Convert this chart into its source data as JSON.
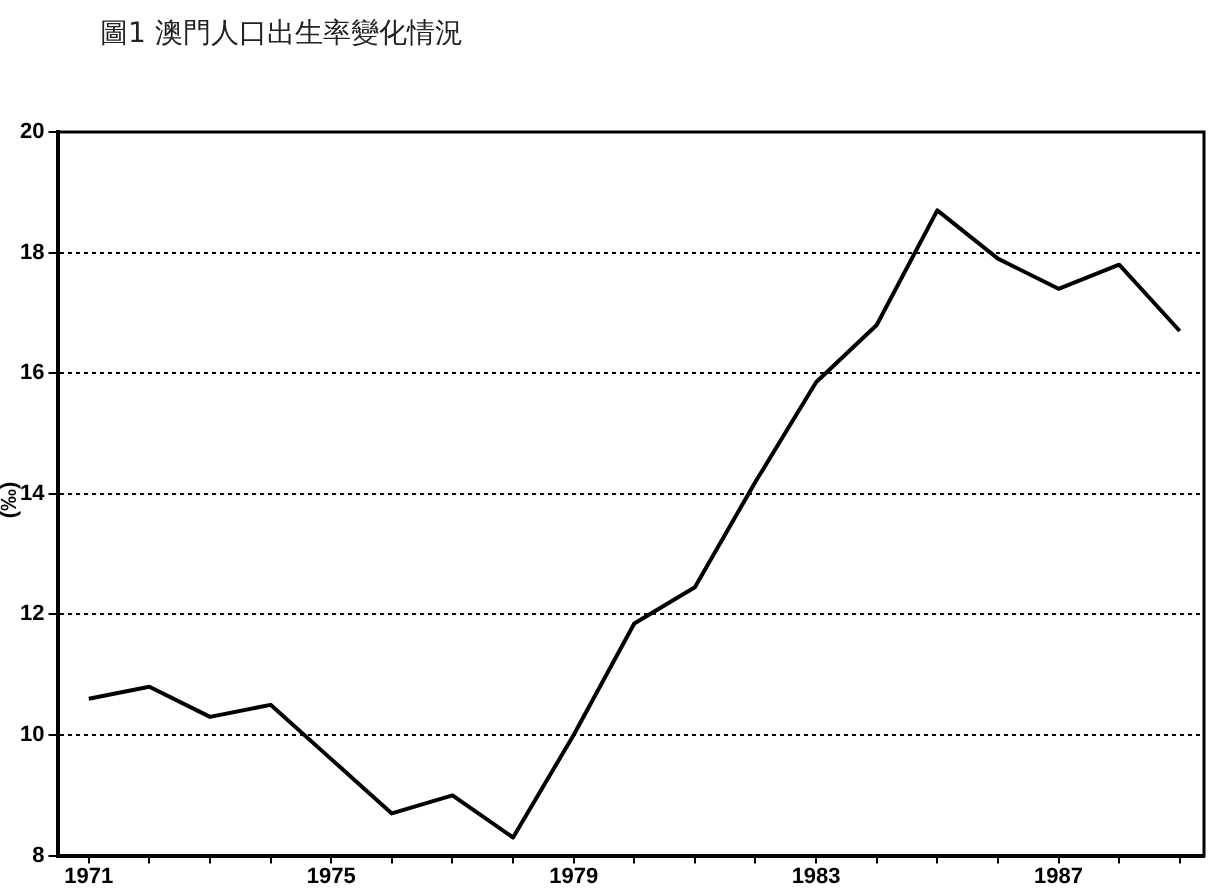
{
  "chart_data": {
    "type": "line",
    "title": "圖1 澳門人口出生率變化情況",
    "ylabel": "(‰)",
    "x": [
      1971,
      1972,
      1973,
      1974,
      1975,
      1976,
      1977,
      1978,
      1979,
      1980,
      1981,
      1982,
      1983,
      1984,
      1985,
      1986,
      1987,
      1988,
      1989
    ],
    "series": [
      {
        "color": "#000000",
        "values": [
          10.6,
          10.8,
          10.3,
          10.5,
          9.6,
          8.7,
          9.0,
          8.3,
          10.0,
          11.85,
          12.45,
          14.2,
          15.85,
          16.8,
          18.7,
          17.9,
          17.4,
          17.8,
          16.7
        ]
      }
    ],
    "xlim": [
      1970.5,
      1989.4
    ],
    "xticks": [
      1971,
      {
        "value": 1972,
        "label": null
      },
      {
        "value": 1973,
        "label": null
      },
      {
        "value": 1974,
        "label": null
      },
      1975,
      {
        "value": 1976,
        "label": null
      },
      {
        "value": 1977,
        "label": null
      },
      {
        "value": 1978,
        "label": null
      },
      1979,
      {
        "value": 1980,
        "label": null
      },
      {
        "value": 1981,
        "label": null
      },
      {
        "value": 1982,
        "label": null
      },
      1983,
      {
        "value": 1984,
        "label": null
      },
      {
        "value": 1985,
        "label": null
      },
      {
        "value": 1986,
        "label": null
      },
      1987,
      {
        "value": 1988,
        "label": null
      },
      {
        "value": 1989,
        "label": null
      }
    ],
    "ylim": [
      8,
      20
    ],
    "yticks": [
      8,
      10,
      12,
      14,
      16,
      18,
      20
    ],
    "grid": "y",
    "legend": false,
    "marker": "none",
    "line_style": "solid"
  }
}
